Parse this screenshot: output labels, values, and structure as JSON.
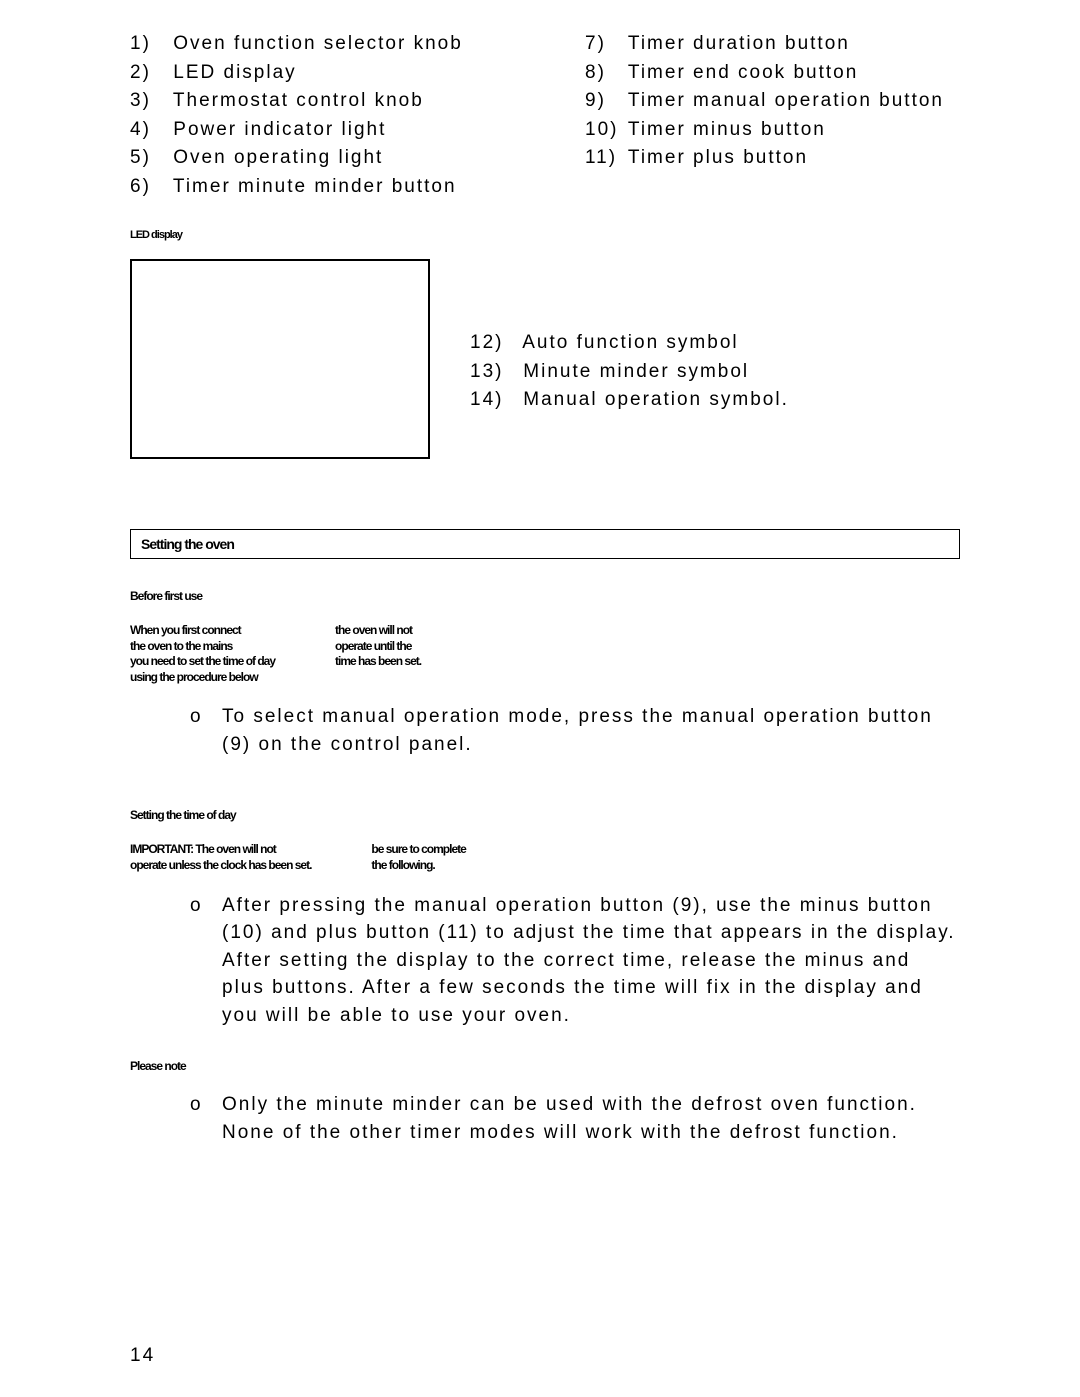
{
  "top_left": [
    {
      "n": "1)",
      "t": "Oven function selector knob"
    },
    {
      "n": "2)",
      "t": "LED display"
    },
    {
      "n": "3)",
      "t": "Thermostat control knob"
    },
    {
      "n": "4)",
      "t": "Power indicator light"
    },
    {
      "n": "5)",
      "t": "Oven operating light"
    },
    {
      "n": "6)",
      "t": "Timer minute minder button"
    }
  ],
  "top_right": [
    {
      "n": "7)",
      "t": "Timer duration button"
    },
    {
      "n": "8)",
      "t": "Timer end cook button"
    },
    {
      "n": "9)",
      "t": "Timer manual operation button"
    },
    {
      "n": "10)",
      "t": "Timer minus button"
    },
    {
      "n": "11)",
      "t": "Timer plus button"
    }
  ],
  "small_blob_top": "LED display",
  "mid_list": [
    {
      "n": "12)",
      "t": "Auto function symbol"
    },
    {
      "n": "13)",
      "t": " Minute minder symbol"
    },
    {
      "n": "14)",
      "t": " Manual operation symbol."
    }
  ],
  "section_title": "Setting the oven",
  "subhead1": "Before first use",
  "blob1_left": "When you first connect\nthe oven to the mains\nyou need to set the time of day\nusing the procedure below",
  "blob1_right": "the oven will not\noperate until the\ntime has been set.",
  "para1": "To select manual operation mode, press the manual operation button (9)    on the control panel.",
  "subhead2": "Setting the time of day",
  "blob2_left": "IMPORTANT: The oven will not\noperate unless the clock has been set.",
  "blob2_right": "be sure to complete\nthe following.",
  "para2": "After pressing the manual operation button (9), use the minus button (10)    and plus button (11)    to adjust the time that appears in the display. After setting the display to the correct time, release the minus and plus buttons. After a few seconds the time will fix in the display and you will be able to use your oven.",
  "subhead3": "Please note",
  "para3": "Only the minute minder can be used with the defrost oven function. None of the other timer modes will work with the defrost function.",
  "page_number": "14",
  "bullet_glyph": "o"
}
